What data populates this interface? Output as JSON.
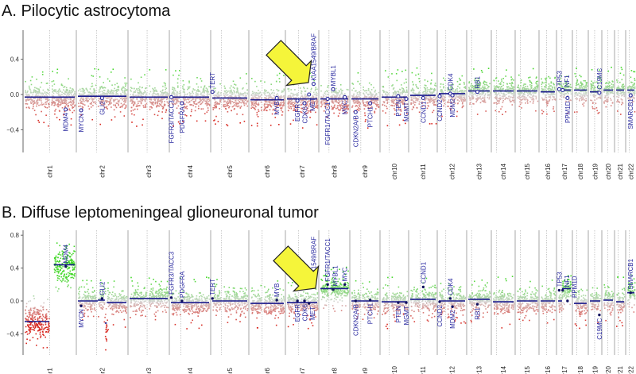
{
  "chart_data": [
    {
      "type": "scatter",
      "title": "A. Pilocytic astrocytoma",
      "yticks": [
        "0.4",
        "0.0",
        "−0.4"
      ],
      "ytick_values": [
        0.4,
        0.0,
        -0.4
      ],
      "ylim": [
        -0.6,
        0.65
      ],
      "gene_marker": "open-circle",
      "segments": [
        {
          "chr": "1",
          "start": 0,
          "end": 249,
          "value": -0.03
        },
        {
          "chr": "2",
          "start": 0,
          "end": 243,
          "value": -0.02
        },
        {
          "chr": "3",
          "start": 0,
          "end": 198,
          "value": -0.03
        },
        {
          "chr": "4",
          "start": 0,
          "end": 191,
          "value": -0.03
        },
        {
          "chr": "5",
          "start": 0,
          "end": 181,
          "value": -0.04
        },
        {
          "chr": "6",
          "start": 0,
          "end": 171,
          "value": -0.06
        },
        {
          "chr": "7",
          "start": 0,
          "end": 159,
          "value": -0.05
        },
        {
          "chr": "8",
          "start": 0,
          "end": 146,
          "value": -0.05
        },
        {
          "chr": "9",
          "start": 0,
          "end": 141,
          "value": -0.05
        },
        {
          "chr": "10",
          "start": 0,
          "end": 135,
          "value": -0.03
        },
        {
          "chr": "11",
          "start": 0,
          "end": 135,
          "value": -0.01
        },
        {
          "chr": "12",
          "start": 0,
          "end": 133,
          "value": 0.01
        },
        {
          "chr": "13",
          "start": 0,
          "end": 115,
          "value": 0.04
        },
        {
          "chr": "14",
          "start": 0,
          "end": 107,
          "value": 0.04
        },
        {
          "chr": "15",
          "start": 0,
          "end": 102,
          "value": 0.04
        },
        {
          "chr": "16",
          "start": 0,
          "end": 90,
          "value": 0.03
        },
        {
          "chr": "17",
          "start": 0,
          "end": 81,
          "value": 0.05
        },
        {
          "chr": "18",
          "start": 0,
          "end": 78,
          "value": 0.05
        },
        {
          "chr": "19",
          "start": 0,
          "end": 59,
          "value": 0.03
        },
        {
          "chr": "20",
          "start": 0,
          "end": 63,
          "value": 0.05
        },
        {
          "chr": "21",
          "start": 0,
          "end": 48,
          "value": 0.05
        },
        {
          "chr": "22",
          "start": 0,
          "end": 51,
          "value": 0.05
        }
      ],
      "genes": [
        {
          "name": "MDM4",
          "chr": "1",
          "pos": 204,
          "value": -0.17,
          "side": "below"
        },
        {
          "name": "MYCN",
          "chr": "2",
          "pos": 16,
          "value": -0.18,
          "side": "below"
        },
        {
          "name": "GLI2",
          "chr": "2",
          "pos": 121,
          "value": -0.04,
          "side": "below"
        },
        {
          "name": "FGFR3/TACC3",
          "chr": "4",
          "pos": 2,
          "value": -0.03,
          "side": "below"
        },
        {
          "name": "PDGFRA",
          "chr": "4",
          "pos": 55,
          "value": -0.1,
          "side": "below"
        },
        {
          "name": "TERT",
          "chr": "5",
          "pos": 1,
          "value": 0.03,
          "side": "above"
        },
        {
          "name": "MYB",
          "chr": "6",
          "pos": 135,
          "value": -0.04,
          "side": "below"
        },
        {
          "name": "EGFR",
          "chr": "7",
          "pos": 55,
          "value": -0.07,
          "side": "below"
        },
        {
          "name": "CDK6",
          "chr": "7",
          "pos": 92,
          "value": -0.1,
          "side": "below"
        },
        {
          "name": "MET",
          "chr": "7",
          "pos": 116,
          "value": 0.0,
          "side": "below"
        },
        {
          "name": "KIAA1549/BRAF",
          "chr": "7",
          "pos": 140,
          "value": 0.12,
          "side": "above"
        },
        {
          "name": "FGFR1/TACC1",
          "chr": "8",
          "pos": 38,
          "value": -0.05,
          "side": "below"
        },
        {
          "name": "MYBL1",
          "chr": "8",
          "pos": 67,
          "value": 0.06,
          "side": "above"
        },
        {
          "name": "MYC",
          "chr": "8",
          "pos": 128,
          "value": -0.03,
          "side": "below"
        },
        {
          "name": "CDKN2A/B",
          "chr": "9",
          "pos": 22,
          "value": -0.2,
          "side": "below"
        },
        {
          "name": "PTCH1",
          "chr": "9",
          "pos": 98,
          "value": -0.1,
          "side": "below"
        },
        {
          "name": "PTEN",
          "chr": "10",
          "pos": 88,
          "value": -0.02,
          "side": "below"
        },
        {
          "name": "MGMT",
          "chr": "10",
          "pos": 131,
          "value": -0.05,
          "side": "below"
        },
        {
          "name": "CCND1",
          "chr": "11",
          "pos": 69,
          "value": -0.04,
          "side": "below"
        },
        {
          "name": "CCND2",
          "chr": "12",
          "pos": 4,
          "value": -0.02,
          "side": "below"
        },
        {
          "name": "CDK4",
          "chr": "12",
          "pos": 58,
          "value": 0.01,
          "side": "above"
        },
        {
          "name": "MDM2",
          "chr": "12",
          "pos": 69,
          "value": -0.01,
          "side": "below"
        },
        {
          "name": "RB1",
          "chr": "13",
          "pos": 49,
          "value": 0.03,
          "side": "above"
        },
        {
          "name": "TP53",
          "chr": "17",
          "pos": 7,
          "value": 0.06,
          "side": "above"
        },
        {
          "name": "NF1",
          "chr": "17",
          "pos": 29,
          "value": 0.05,
          "side": "above"
        },
        {
          "name": "PPM1D",
          "chr": "17",
          "pos": 60,
          "value": -0.04,
          "side": "below"
        },
        {
          "name": "C19MC",
          "chr": "19",
          "pos": 54,
          "value": 0.02,
          "side": "above"
        },
        {
          "name": "SMARCB1",
          "chr": "22",
          "pos": 24,
          "value": -0.01,
          "side": "below"
        }
      ],
      "annotation": "yellow-arrow pointing to KIAA1549/BRAF"
    },
    {
      "type": "scatter",
      "title": "B. Diffuse leptomeningeal glioneuronal tumor",
      "yticks": [
        "0.8",
        "0.4",
        "0.0",
        "−0.4"
      ],
      "ytick_values": [
        0.8,
        0.4,
        0.0,
        -0.4
      ],
      "ylim": [
        -0.62,
        0.85
      ],
      "gene_marker": "filled-dot",
      "segments": [
        {
          "chr": "1",
          "start": 0,
          "end": 122,
          "value": -0.25
        },
        {
          "chr": "1",
          "start": 145,
          "end": 249,
          "value": 0.44
        },
        {
          "chr": "2",
          "start": 0,
          "end": 100,
          "value": 0.0
        },
        {
          "chr": "2",
          "start": 100,
          "end": 135,
          "value": 0.01
        },
        {
          "chr": "2",
          "start": 135,
          "end": 145,
          "value": -0.27
        },
        {
          "chr": "2",
          "start": 145,
          "end": 243,
          "value": -0.02
        },
        {
          "chr": "3",
          "start": 0,
          "end": 198,
          "value": 0.03
        },
        {
          "chr": "4",
          "start": 0,
          "end": 191,
          "value": -0.02
        },
        {
          "chr": "5",
          "start": 0,
          "end": 181,
          "value": 0.0
        },
        {
          "chr": "6",
          "start": 0,
          "end": 171,
          "value": -0.03
        },
        {
          "chr": "7",
          "start": 0,
          "end": 159,
          "value": -0.02
        },
        {
          "chr": "8",
          "start": 0,
          "end": 146,
          "value": 0.15
        },
        {
          "chr": "9",
          "start": 0,
          "end": 141,
          "value": 0.0
        },
        {
          "chr": "10",
          "start": 0,
          "end": 135,
          "value": -0.01
        },
        {
          "chr": "11",
          "start": 0,
          "end": 135,
          "value": 0.02
        },
        {
          "chr": "12",
          "start": 0,
          "end": 133,
          "value": 0.0
        },
        {
          "chr": "13",
          "start": 0,
          "end": 115,
          "value": 0.02
        },
        {
          "chr": "14",
          "start": 0,
          "end": 107,
          "value": -0.01
        },
        {
          "chr": "15",
          "start": 0,
          "end": 102,
          "value": 0.0
        },
        {
          "chr": "16",
          "start": 0,
          "end": 90,
          "value": 0.0
        },
        {
          "chr": "17",
          "start": 0,
          "end": 25,
          "value": 0.0
        },
        {
          "chr": "17",
          "start": 25,
          "end": 81,
          "value": 0.15
        },
        {
          "chr": "18",
          "start": 0,
          "end": 78,
          "value": -0.03
        },
        {
          "chr": "19",
          "start": 0,
          "end": 59,
          "value": 0.0
        },
        {
          "chr": "20",
          "start": 0,
          "end": 63,
          "value": 0.01
        },
        {
          "chr": "21",
          "start": 0,
          "end": 48,
          "value": -0.01
        },
        {
          "chr": "22",
          "start": 0,
          "end": 51,
          "value": 0.1
        }
      ],
      "genes": [
        {
          "name": "MDM4",
          "chr": "1",
          "pos": 204,
          "value": 0.42,
          "side": "above"
        },
        {
          "name": "MYCN",
          "chr": "2",
          "pos": 16,
          "value": -0.06,
          "side": "below"
        },
        {
          "name": "GLI2",
          "chr": "2",
          "pos": 121,
          "value": 0.03,
          "side": "above"
        },
        {
          "name": "FGFR3/TACC3",
          "chr": "4",
          "pos": 2,
          "value": 0.04,
          "side": "above"
        },
        {
          "name": "PDGFRA",
          "chr": "4",
          "pos": 55,
          "value": 0.0,
          "side": "above"
        },
        {
          "name": "TERT",
          "chr": "5",
          "pos": 1,
          "value": 0.03,
          "side": "above"
        },
        {
          "name": "MYB",
          "chr": "6",
          "pos": 135,
          "value": 0.01,
          "side": "above"
        },
        {
          "name": "EGFR",
          "chr": "7",
          "pos": 55,
          "value": 0.0,
          "side": "below"
        },
        {
          "name": "CDK6",
          "chr": "7",
          "pos": 92,
          "value": 0.0,
          "side": "below"
        },
        {
          "name": "MET",
          "chr": "7",
          "pos": 116,
          "value": -0.03,
          "side": "below"
        },
        {
          "name": "KIAA1549/BRAF",
          "chr": "7",
          "pos": 140,
          "value": 0.17,
          "side": "above"
        },
        {
          "name": "FGFR1/TACC1",
          "chr": "8",
          "pos": 38,
          "value": 0.2,
          "side": "above"
        },
        {
          "name": "MYBL1",
          "chr": "8",
          "pos": 67,
          "value": 0.14,
          "side": "above"
        },
        {
          "name": "MYC",
          "chr": "8",
          "pos": 128,
          "value": 0.2,
          "side": "above"
        },
        {
          "name": "CDKN2A/B",
          "chr": "9",
          "pos": 22,
          "value": 0.0,
          "side": "below"
        },
        {
          "name": "PTCH1",
          "chr": "9",
          "pos": 98,
          "value": 0.01,
          "side": "below"
        },
        {
          "name": "PTEN",
          "chr": "10",
          "pos": 88,
          "value": -0.02,
          "side": "below"
        },
        {
          "name": "MGMT",
          "chr": "10",
          "pos": 131,
          "value": -0.02,
          "side": "below"
        },
        {
          "name": "CCND1",
          "chr": "11",
          "pos": 69,
          "value": 0.17,
          "side": "above"
        },
        {
          "name": "CCND2",
          "chr": "12",
          "pos": 4,
          "value": -0.01,
          "side": "below"
        },
        {
          "name": "CDK4",
          "chr": "12",
          "pos": 58,
          "value": 0.03,
          "side": "above"
        },
        {
          "name": "MDM2",
          "chr": "12",
          "pos": 69,
          "value": -0.07,
          "side": "below"
        },
        {
          "name": "RB1",
          "chr": "13",
          "pos": 49,
          "value": -0.04,
          "side": "below"
        },
        {
          "name": "TP53",
          "chr": "17",
          "pos": 7,
          "value": 0.13,
          "side": "above"
        },
        {
          "name": "NF1",
          "chr": "17",
          "pos": 29,
          "value": 0.13,
          "side": "above"
        },
        {
          "name": "PPM1D",
          "chr": "17",
          "pos": 60,
          "value": 0.0,
          "side": "above"
        },
        {
          "name": "C19MC",
          "chr": "19",
          "pos": 54,
          "value": -0.17,
          "side": "below"
        },
        {
          "name": "SMARCB1",
          "chr": "22",
          "pos": 24,
          "value": 0.1,
          "side": "above"
        }
      ],
      "annotation": "yellow-arrow pointing to KIAA1549/BRAF"
    }
  ],
  "chromosomes": [
    "chr1",
    "chr2",
    "chr3",
    "chr4",
    "chr5",
    "chr6",
    "chr7",
    "chr8",
    "chr9",
    "chr10",
    "chr11",
    "chr12",
    "chr13",
    "chr14",
    "chr15",
    "chr16",
    "chr17",
    "chr18",
    "chr19",
    "chr20",
    "chr21",
    "chr22"
  ],
  "colors": {
    "gain": "#3ecf1e",
    "loss": "#d42a20",
    "neutral": "#cfcfcf",
    "segment": "#1a1a8c",
    "gene": "#2a2aa0",
    "arrow": "#f5f53a"
  }
}
